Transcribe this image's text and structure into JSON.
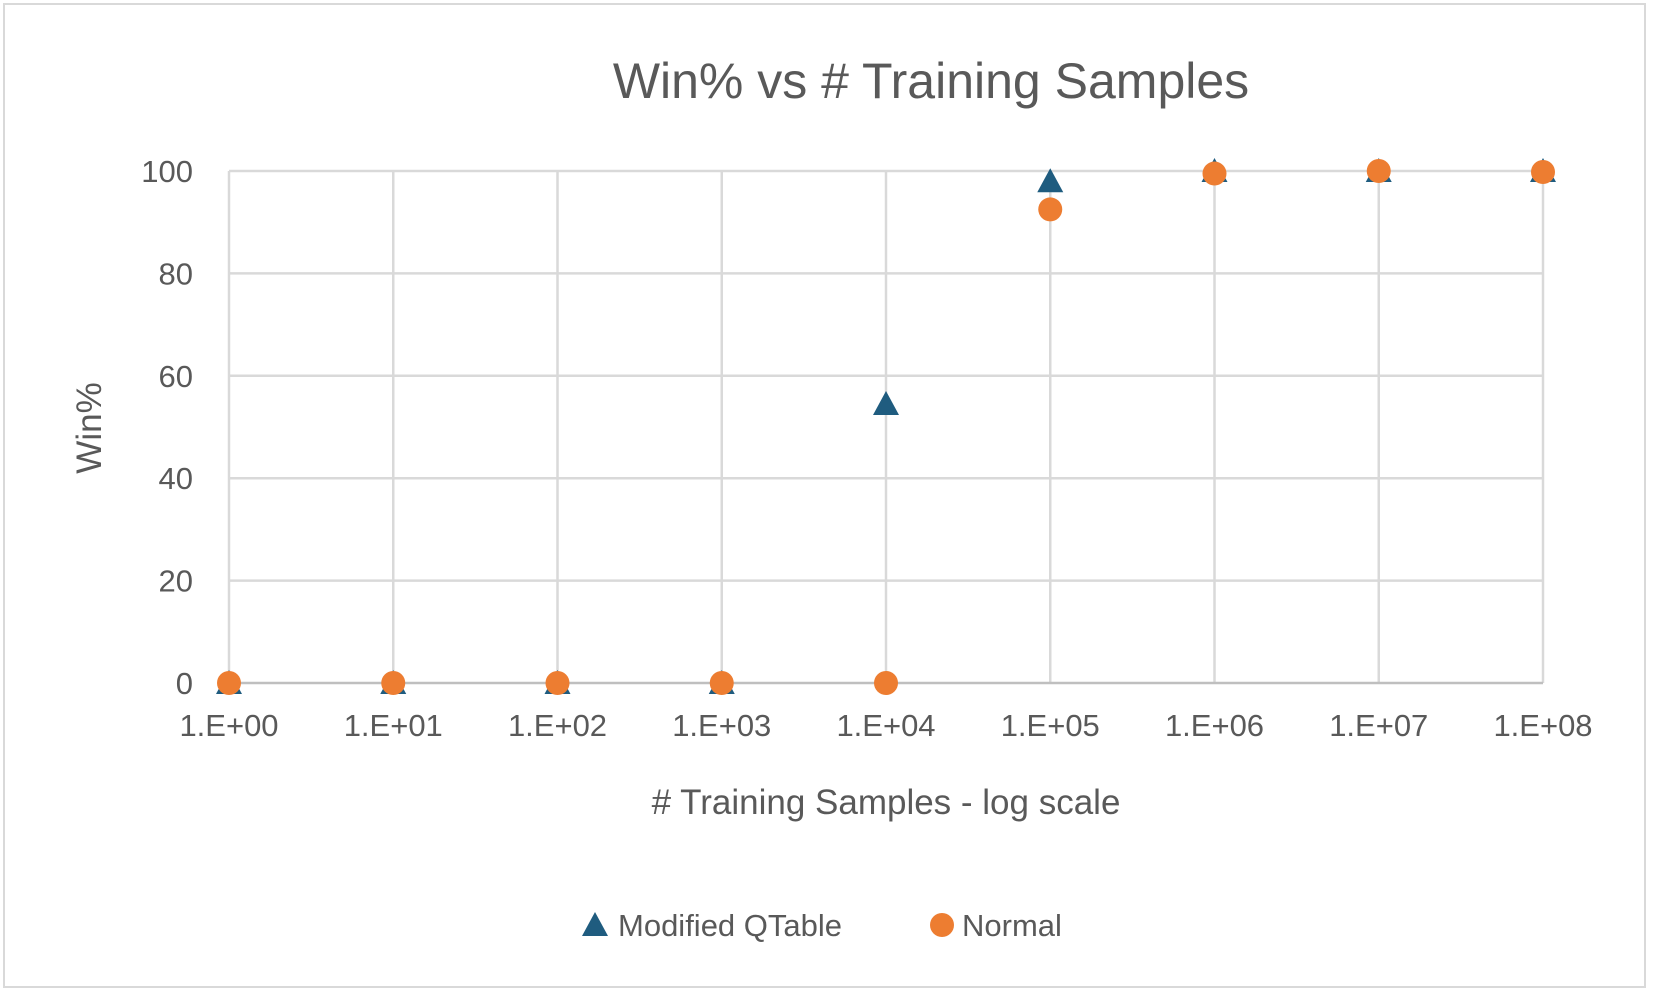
{
  "chart_data": {
    "type": "scatter",
    "title": "Win% vs # Training Samples",
    "xlabel": "# Training Samples - log scale",
    "ylabel": "Win%",
    "x_scale": "log",
    "xlim": [
      1,
      100000000
    ],
    "ylim": [
      0,
      100
    ],
    "x_tick_values": [
      1,
      10,
      100,
      1000,
      10000,
      100000,
      1000000,
      10000000,
      100000000
    ],
    "x_tick_labels": [
      "1.E+00",
      "1.E+01",
      "1.E+02",
      "1.E+03",
      "1.E+04",
      "1.E+05",
      "1.E+06",
      "1.E+07",
      "1.E+08"
    ],
    "y_tick_values": [
      0,
      20,
      40,
      60,
      80,
      100
    ],
    "y_tick_labels": [
      "0",
      "20",
      "40",
      "60",
      "80",
      "100"
    ],
    "grid": true,
    "legend_position": "bottom",
    "x": [
      1,
      10,
      100,
      1000,
      10000,
      100000,
      1000000,
      10000000,
      100000000
    ],
    "series": [
      {
        "name": "Modified QTable",
        "marker": "triangle",
        "color": "#1f5c7f",
        "values": [
          0,
          0,
          0,
          0,
          54.5,
          98,
          100,
          100,
          100
        ]
      },
      {
        "name": "Normal",
        "marker": "circle",
        "color": "#ed7d31",
        "values": [
          0,
          0,
          0,
          0,
          0,
          92.5,
          99.5,
          100,
          99.8
        ]
      }
    ]
  }
}
